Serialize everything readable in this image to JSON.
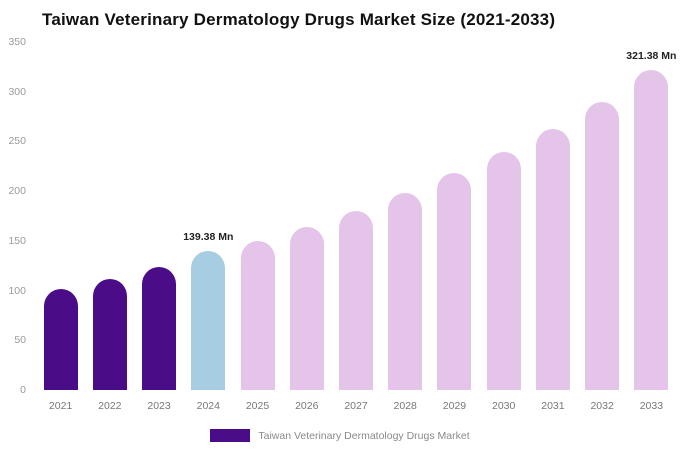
{
  "title": "Taiwan Veterinary Dermatology Drugs Market Size (2021-2033)",
  "legend": {
    "label": "Taiwan Veterinary Dermatology Drugs Market",
    "swatch_color": "#4a0d87"
  },
  "chart_data": {
    "type": "bar",
    "title": "Taiwan Veterinary Dermatology Drugs Market Size (2021-2033)",
    "categories": [
      "2021",
      "2022",
      "2023",
      "2024",
      "2025",
      "2026",
      "2027",
      "2028",
      "2029",
      "2030",
      "2031",
      "2032",
      "2033"
    ],
    "values": [
      102,
      112,
      124,
      139.38,
      150,
      164,
      180,
      198,
      218,
      239,
      262,
      290,
      321.38
    ],
    "bar_colors": [
      "#4a0d87",
      "#4a0d87",
      "#4a0d87",
      "#a6cde2",
      "#e5c4ea",
      "#e5c4ea",
      "#e5c4ea",
      "#e5c4ea",
      "#e5c4ea",
      "#e5c4ea",
      "#e5c4ea",
      "#e5c4ea",
      "#e5c4ea"
    ],
    "annotations": [
      {
        "category": "2024",
        "text": "139.38 Mn"
      },
      {
        "category": "2033",
        "text": "321.38 Mn"
      }
    ],
    "xlabel": "",
    "ylabel": "",
    "ylim": [
      0,
      350
    ],
    "yticks": [
      0,
      50,
      100,
      150,
      200,
      250,
      300,
      350
    ],
    "grid": false,
    "legend_position": "bottom-center"
  }
}
